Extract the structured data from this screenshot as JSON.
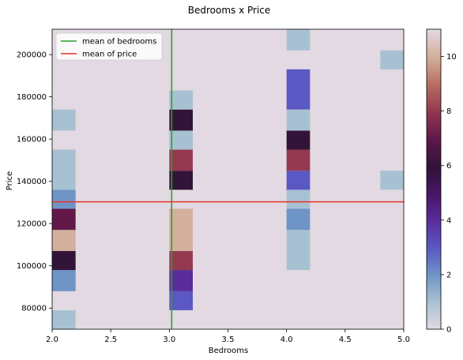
{
  "chart_data": {
    "type": "heatmap",
    "title": "Bedrooms x Price",
    "xlabel": "Bedrooms",
    "ylabel": "Price",
    "xlim": [
      2.0,
      5.0
    ],
    "ylim": [
      70000,
      212000
    ],
    "xticks": [
      2.0,
      2.5,
      3.0,
      3.5,
      4.0,
      4.5,
      5.0
    ],
    "xtick_labels": [
      "2.0",
      "2.5",
      "3.0",
      "3.5",
      "4.0",
      "4.5",
      "5.0"
    ],
    "yticks": [
      80000,
      100000,
      120000,
      140000,
      160000,
      180000,
      200000
    ],
    "ytick_labels": [
      "80000",
      "100000",
      "120000",
      "140000",
      "160000",
      "180000",
      "200000"
    ],
    "colorbar": {
      "min": 0,
      "max": 11,
      "ticks": [
        0,
        2,
        4,
        6,
        8,
        10
      ],
      "tick_labels": [
        "0",
        "2",
        "4",
        "6",
        "8",
        "10"
      ],
      "colormap": "twilight"
    },
    "background_value": 0,
    "cells": [
      {
        "x0": 2.0,
        "x1": 2.2,
        "y0": 70000,
        "y1": 79000,
        "value": 1
      },
      {
        "x0": 2.0,
        "x1": 2.2,
        "y0": 88000,
        "y1": 98000,
        "value": 2
      },
      {
        "x0": 2.0,
        "x1": 2.2,
        "y0": 98000,
        "y1": 107000,
        "value": 6
      },
      {
        "x0": 2.0,
        "x1": 2.2,
        "y0": 107000,
        "y1": 117000,
        "value": 10
      },
      {
        "x0": 2.0,
        "x1": 2.2,
        "y0": 117000,
        "y1": 127000,
        "value": 7
      },
      {
        "x0": 2.0,
        "x1": 2.2,
        "y0": 127000,
        "y1": 136000,
        "value": 2
      },
      {
        "x0": 2.0,
        "x1": 2.2,
        "y0": 136000,
        "y1": 155000,
        "value": 1
      },
      {
        "x0": 2.0,
        "x1": 2.2,
        "y0": 164000,
        "y1": 174000,
        "value": 1
      },
      {
        "x0": 3.0,
        "x1": 3.2,
        "y0": 79000,
        "y1": 88000,
        "value": 3
      },
      {
        "x0": 3.0,
        "x1": 3.2,
        "y0": 88000,
        "y1": 98000,
        "value": 4
      },
      {
        "x0": 3.0,
        "x1": 3.2,
        "y0": 98000,
        "y1": 107000,
        "value": 8
      },
      {
        "x0": 3.0,
        "x1": 3.2,
        "y0": 107000,
        "y1": 127000,
        "value": 10
      },
      {
        "x0": 3.0,
        "x1": 3.2,
        "y0": 136000,
        "y1": 145000,
        "value": 6
      },
      {
        "x0": 3.0,
        "x1": 3.2,
        "y0": 145000,
        "y1": 155000,
        "value": 8
      },
      {
        "x0": 3.0,
        "x1": 3.2,
        "y0": 155000,
        "y1": 164000,
        "value": 1
      },
      {
        "x0": 3.0,
        "x1": 3.2,
        "y0": 164000,
        "y1": 174000,
        "value": 6
      },
      {
        "x0": 3.0,
        "x1": 3.2,
        "y0": 174000,
        "y1": 183000,
        "value": 1
      },
      {
        "x0": 4.0,
        "x1": 4.2,
        "y0": 98000,
        "y1": 117000,
        "value": 1
      },
      {
        "x0": 4.0,
        "x1": 4.2,
        "y0": 117000,
        "y1": 127000,
        "value": 2
      },
      {
        "x0": 4.0,
        "x1": 4.2,
        "y0": 127000,
        "y1": 136000,
        "value": 1
      },
      {
        "x0": 4.0,
        "x1": 4.2,
        "y0": 136000,
        "y1": 145000,
        "value": 3
      },
      {
        "x0": 4.0,
        "x1": 4.2,
        "y0": 145000,
        "y1": 155000,
        "value": 8
      },
      {
        "x0": 4.0,
        "x1": 4.2,
        "y0": 155000,
        "y1": 164000,
        "value": 6
      },
      {
        "x0": 4.0,
        "x1": 4.2,
        "y0": 164000,
        "y1": 174000,
        "value": 1
      },
      {
        "x0": 4.0,
        "x1": 4.2,
        "y0": 174000,
        "y1": 193000,
        "value": 3
      },
      {
        "x0": 4.0,
        "x1": 4.2,
        "y0": 202000,
        "y1": 212000,
        "value": 1
      },
      {
        "x0": 4.8,
        "x1": 5.0,
        "y0": 136000,
        "y1": 145000,
        "value": 1
      },
      {
        "x0": 4.8,
        "x1": 5.0,
        "y0": 193000,
        "y1": 202000,
        "value": 1
      }
    ],
    "reference_lines": [
      {
        "orientation": "vertical",
        "value": 3.02,
        "color": "#2ca02c",
        "name": "mean of bedrooms"
      },
      {
        "orientation": "horizontal",
        "value": 130300,
        "color": "#e8332a",
        "name": "mean of price"
      }
    ],
    "legend": {
      "position": "upper-left",
      "entries": [
        {
          "label": "mean of bedrooms",
          "color": "#2ca02c"
        },
        {
          "label": "mean of price",
          "color": "#e8332a"
        }
      ]
    }
  }
}
